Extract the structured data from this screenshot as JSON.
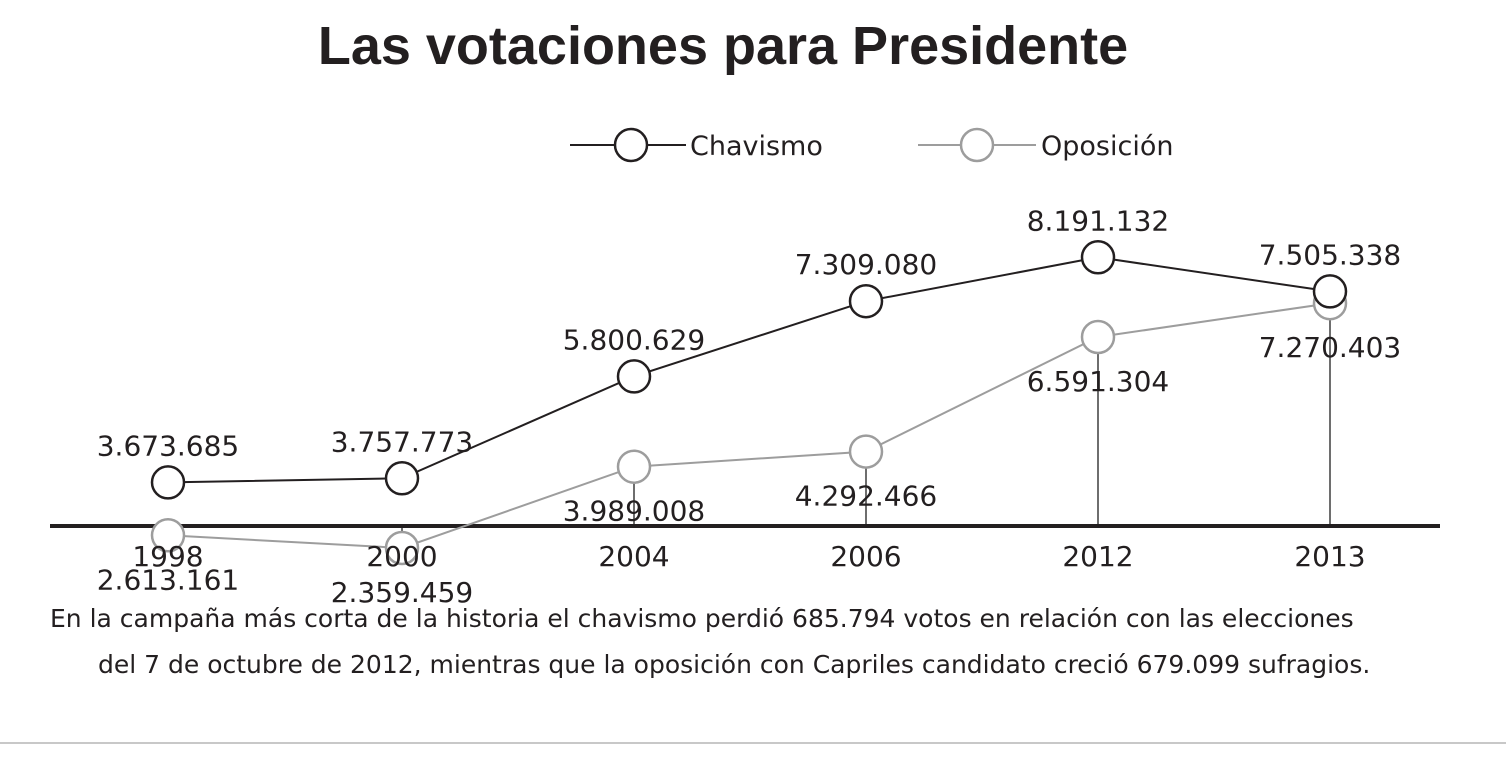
{
  "chart_data": {
    "type": "line",
    "title": "Las votaciones para Presidente",
    "categories": [
      "1998",
      "2000",
      "2004",
      "2006",
      "2012",
      "2013"
    ],
    "series": [
      {
        "name": "Chavismo",
        "color": "#231f20",
        "values": [
          3673685,
          3757773,
          5800629,
          7309080,
          8191132,
          7505338
        ],
        "labels": [
          "3.673.685",
          "3.757.773",
          "5.800.629",
          "7.309.080",
          "8.191.132",
          "7.505.338"
        ]
      },
      {
        "name": "Oposición",
        "color": "#9d9d9d",
        "values": [
          2613161,
          2359459,
          3989008,
          4292466,
          6591304,
          7270403
        ],
        "labels": [
          "2.613.161",
          "2.359.459",
          "3.989.008",
          "4.292.466",
          "6.591.304",
          "7.270.403"
        ]
      }
    ],
    "legend_position": "top-right",
    "grid": false
  },
  "caption": {
    "line1": "En la campaña más corta de la historia el chavismo perdió 685.794 votos en relación con las elecciones",
    "line2": "del 7 de octubre de 2012, mientras que la oposición con Capriles candidato creció 679.099 sufragios."
  }
}
